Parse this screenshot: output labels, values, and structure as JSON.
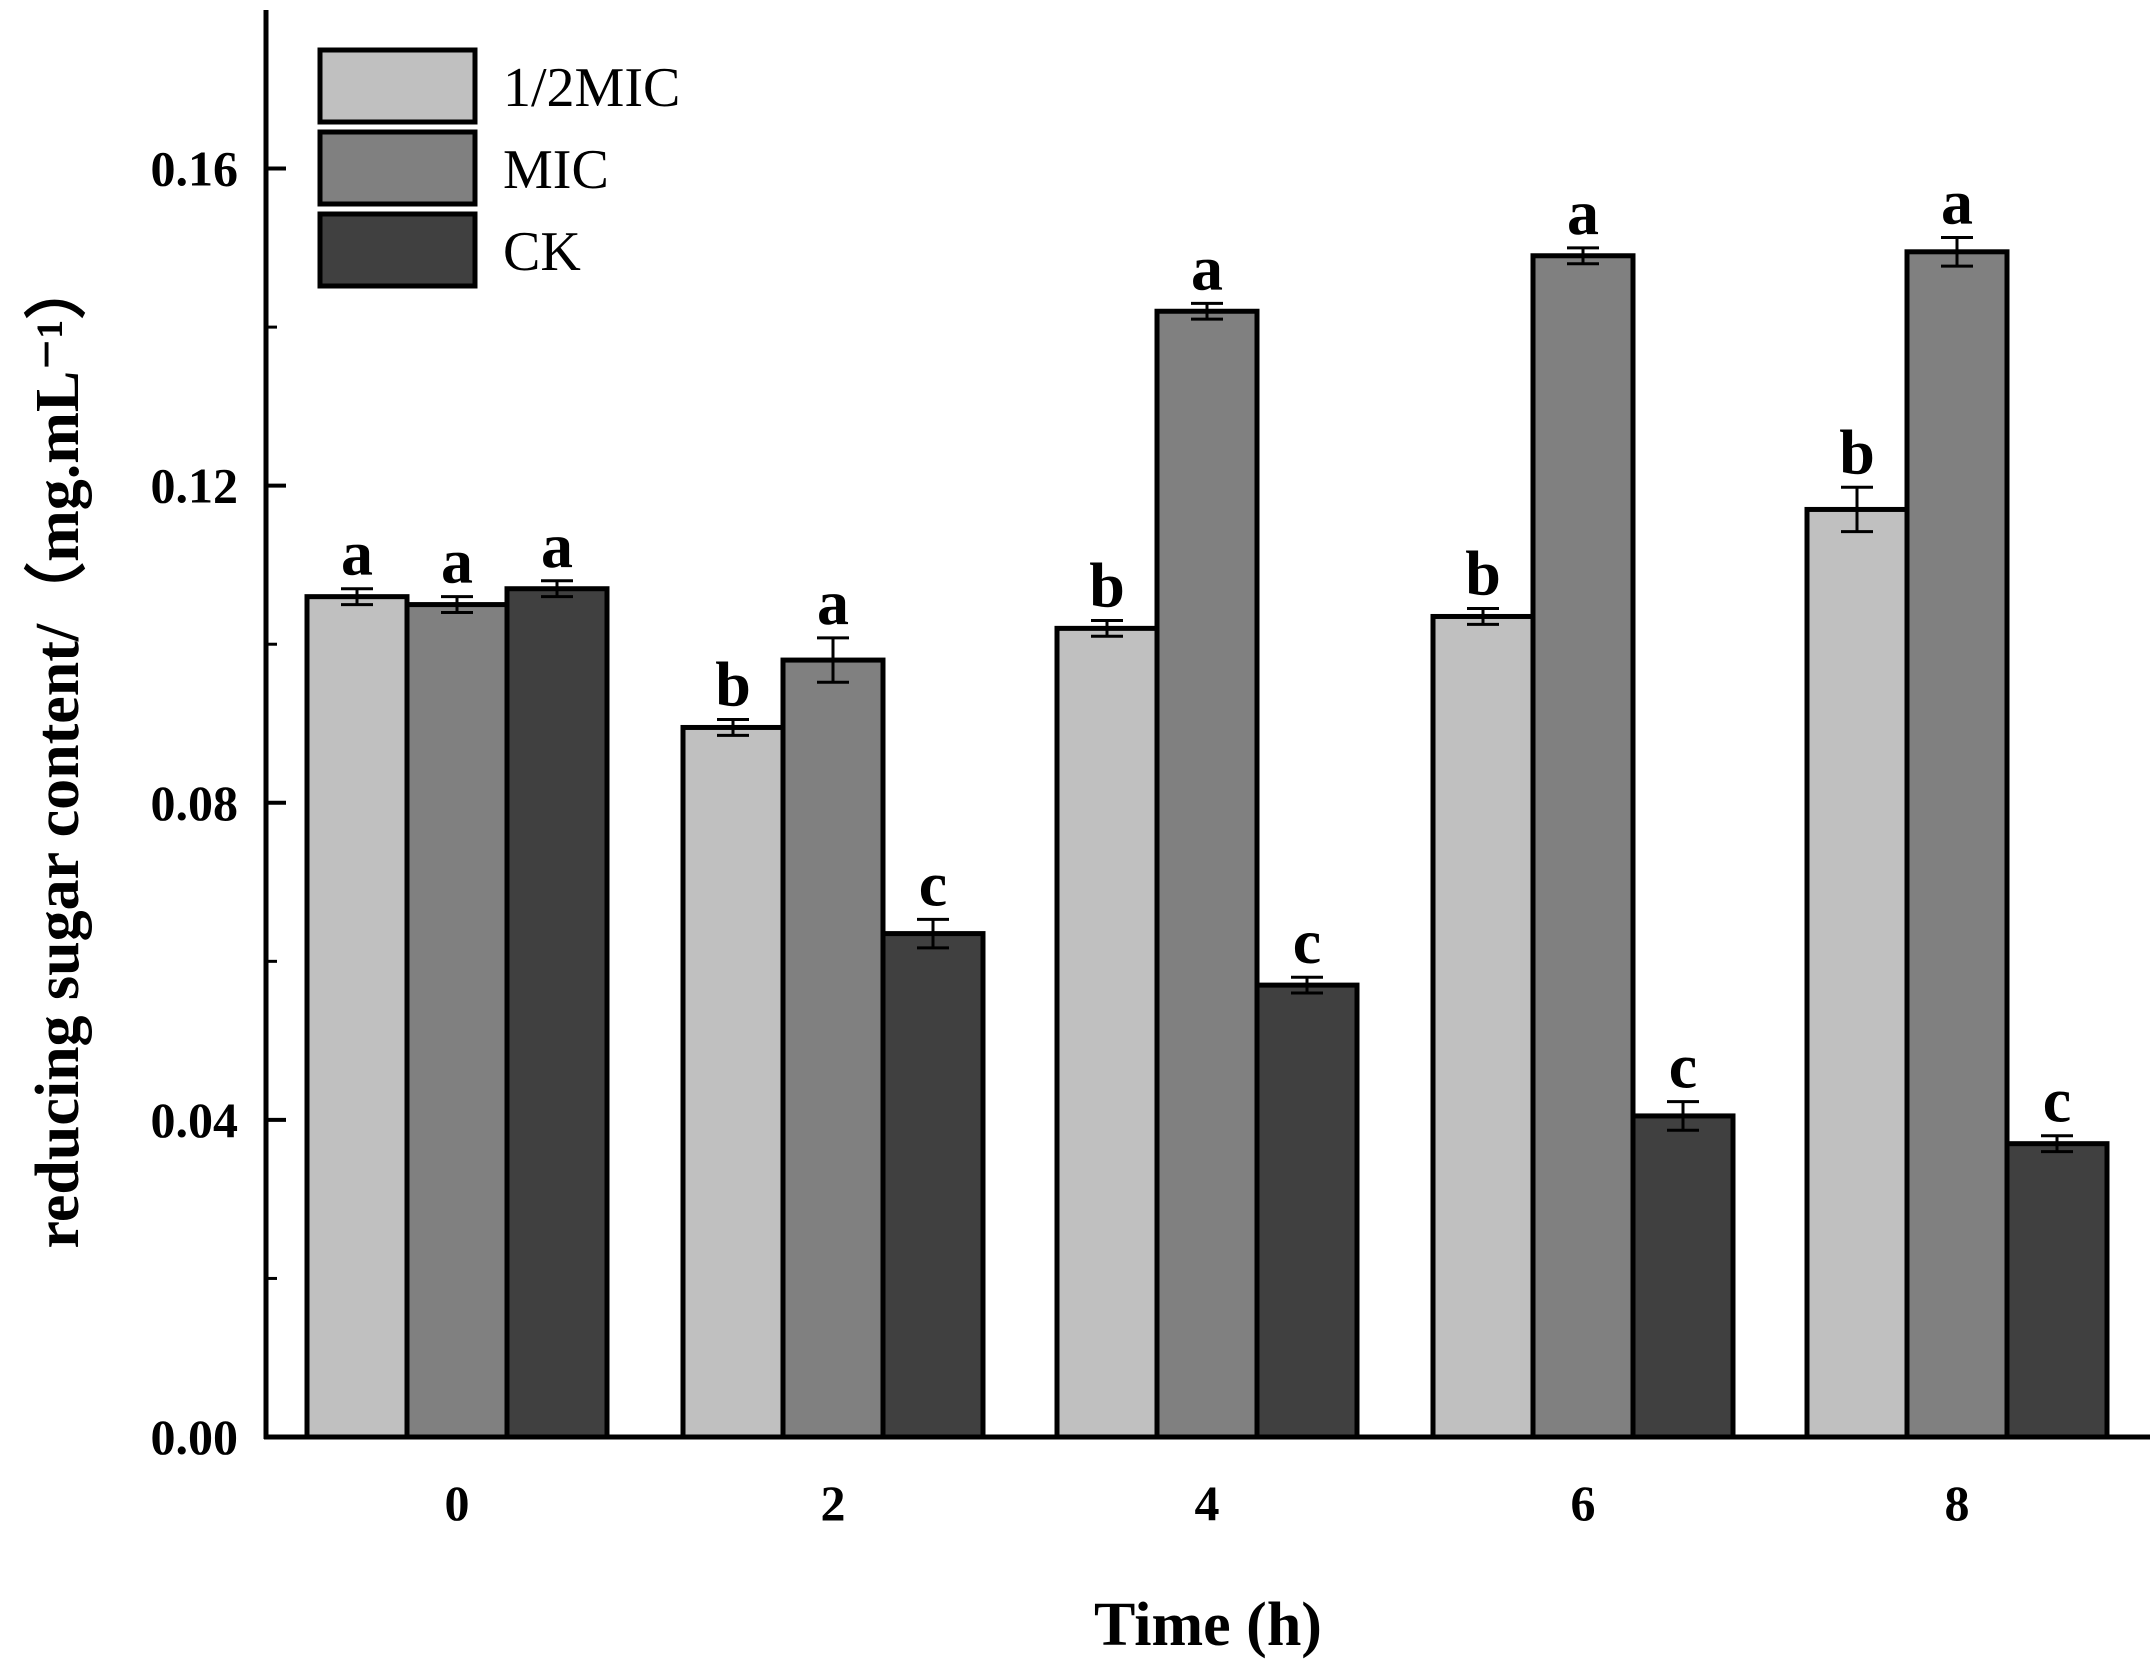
{
  "chart_data": {
    "type": "bar",
    "title": "",
    "xlabel": "Time (h)",
    "ylabel": "reducing sugar content/（mg.mL⁻¹）",
    "ylim": [
      0,
      0.18
    ],
    "yticks": [
      0.0,
      0.04,
      0.08,
      0.12,
      0.16
    ],
    "ytick_labels": [
      "0.00",
      "0.04",
      "0.08",
      "0.12",
      "0.16"
    ],
    "categories": [
      "0",
      "2",
      "4",
      "6",
      "8"
    ],
    "legend_position": "top-left",
    "series": [
      {
        "name": "1/2MIC",
        "color": "#c0c0c0",
        "values": [
          0.106,
          0.0895,
          0.102,
          0.1035,
          0.117
        ],
        "errors": [
          0.001,
          0.001,
          0.001,
          0.001,
          0.0028
        ],
        "significance": [
          "a",
          "b",
          "b",
          "b",
          "b"
        ]
      },
      {
        "name": "MIC",
        "color": "#808080",
        "values": [
          0.105,
          0.098,
          0.142,
          0.149,
          0.1495
        ],
        "errors": [
          0.001,
          0.0028,
          0.001,
          0.001,
          0.0018
        ],
        "significance": [
          "a",
          "a",
          "a",
          "a",
          "a"
        ]
      },
      {
        "name": "CK",
        "color": "#404040",
        "values": [
          0.107,
          0.0635,
          0.057,
          0.0405,
          0.037
        ],
        "errors": [
          0.001,
          0.0018,
          0.001,
          0.0018,
          0.001
        ],
        "significance": [
          "a",
          "c",
          "c",
          "c",
          "c"
        ]
      }
    ]
  }
}
